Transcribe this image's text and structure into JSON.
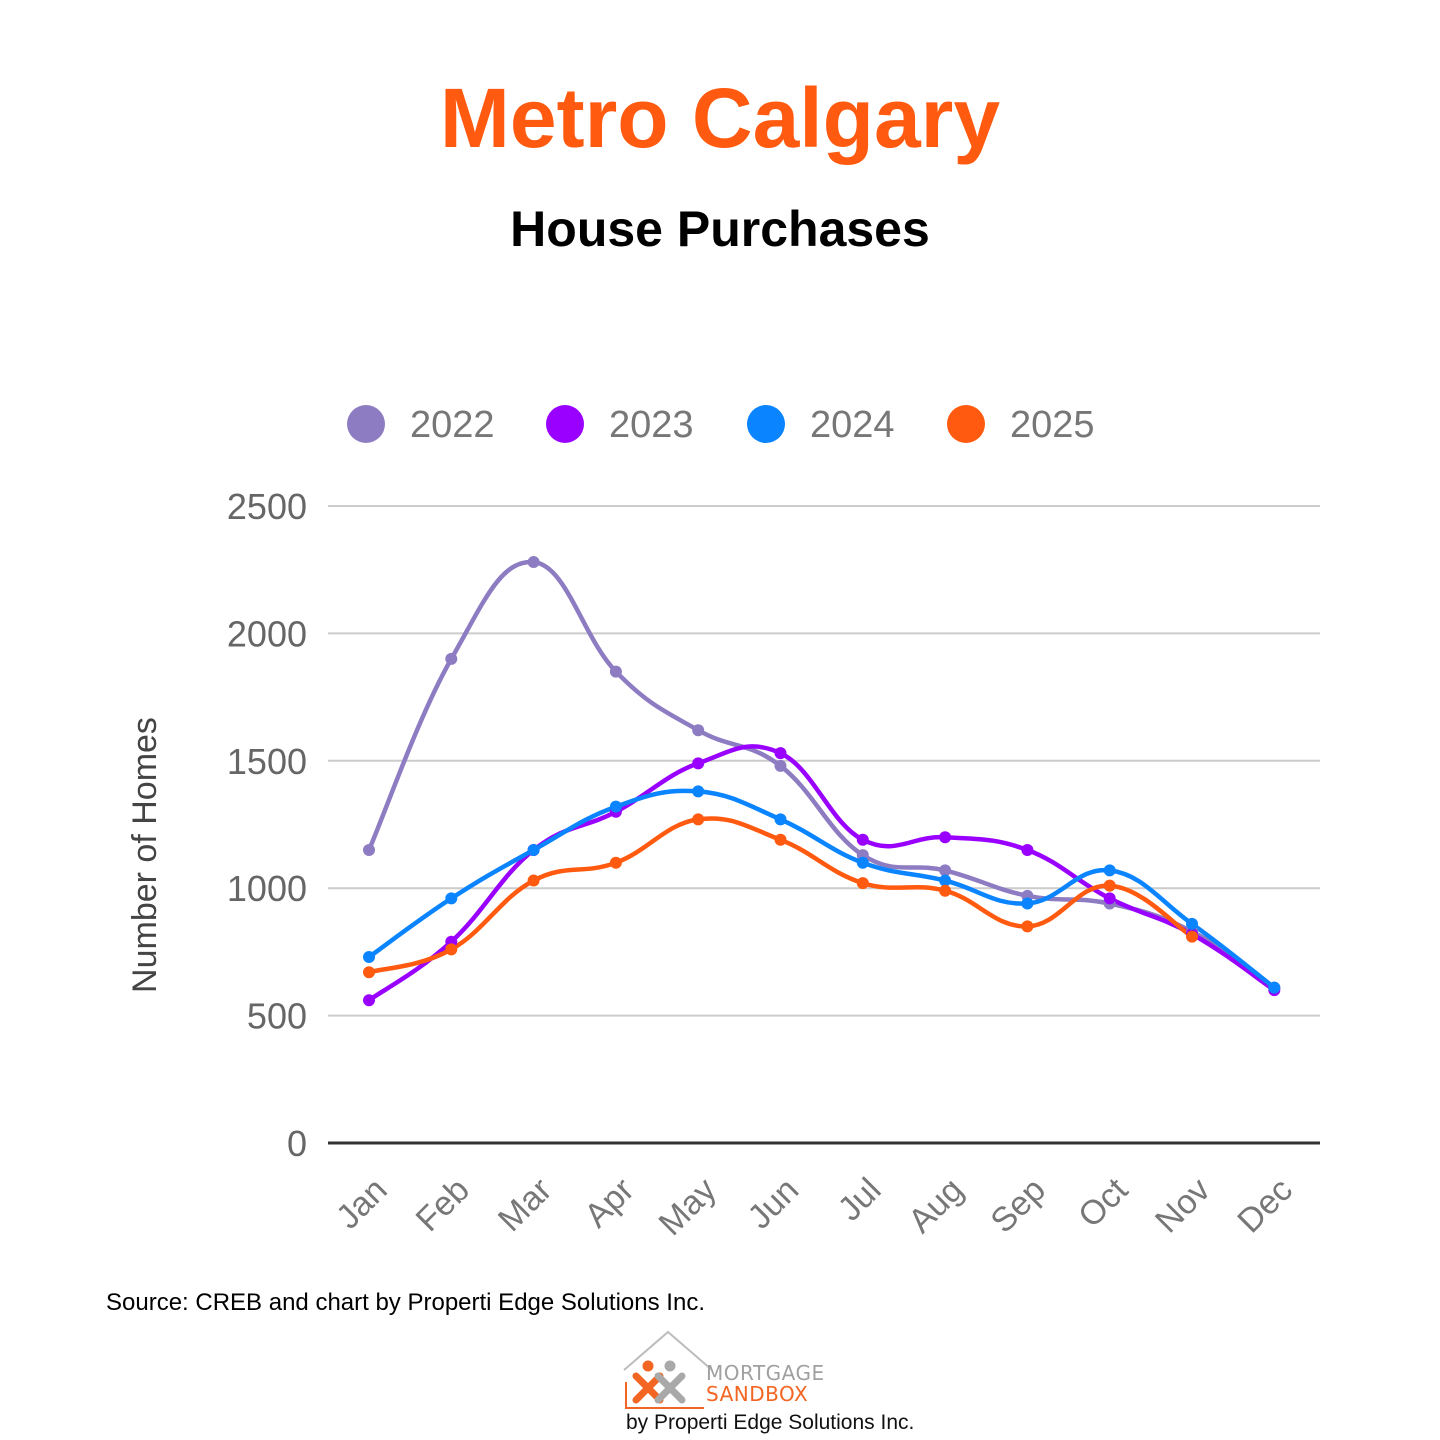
{
  "header": {
    "title": "Metro Calgary",
    "subtitle": "House Purchases"
  },
  "chart_data": {
    "type": "line",
    "title": "",
    "xlabel": "",
    "ylabel": "Number of Homes",
    "ylim": [
      0,
      2500
    ],
    "yticks": [
      0,
      500,
      1000,
      1500,
      2000,
      2500
    ],
    "grid": true,
    "legend_position": "top",
    "smooth": true,
    "categories": [
      "Jan",
      "Feb",
      "Mar",
      "Apr",
      "May",
      "Jun",
      "Jul",
      "Aug",
      "Sep",
      "Oct",
      "Nov",
      "Dec"
    ],
    "series": [
      {
        "name": "2022",
        "color": "#8e7cc3",
        "values": [
          1150,
          1900,
          2280,
          1850,
          1620,
          1480,
          1130,
          1070,
          970,
          940,
          830,
          610
        ]
      },
      {
        "name": "2023",
        "color": "#9900ff",
        "values": [
          560,
          790,
          1150,
          1300,
          1490,
          1530,
          1190,
          1200,
          1150,
          960,
          820,
          600
        ]
      },
      {
        "name": "2024",
        "color": "#0a84ff",
        "values": [
          730,
          960,
          1150,
          1320,
          1380,
          1270,
          1100,
          1030,
          940,
          1070,
          860,
          610
        ]
      },
      {
        "name": "2025",
        "color": "#ff5a0f",
        "values": [
          670,
          760,
          1030,
          1100,
          1270,
          1190,
          1020,
          990,
          850,
          1010,
          810,
          null
        ]
      }
    ]
  },
  "footer": {
    "source": "Source: CREB and chart by Properti Edge Solutions Inc.",
    "logo_line1": "MORTGAGE",
    "logo_line2": "SANDBOX",
    "logo_tagline": "by Properti Edge Solutions Inc."
  }
}
